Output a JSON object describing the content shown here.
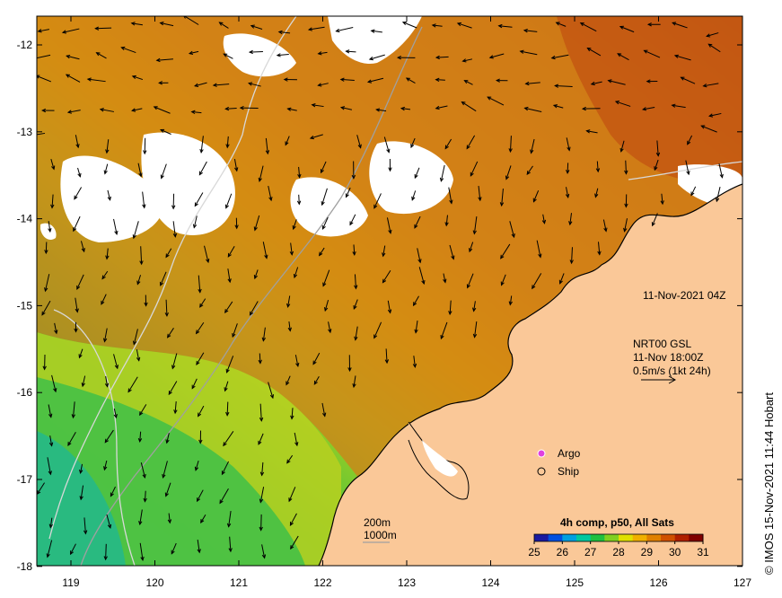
{
  "map": {
    "date_label": "11-Nov-2021 04Z",
    "current_product": "NRT00 GSL",
    "current_time": "11-Nov 18:00Z",
    "current_scale": "0.5m/s (1kt 24h)",
    "legend": {
      "argo": "Argo",
      "ship": "Ship"
    },
    "isobaths": {
      "shallow": "200m",
      "deep": "1000m"
    },
    "colorbar": {
      "title": "4h comp, p50, All Sats",
      "ticks": [
        "25",
        "26",
        "27",
        "28",
        "29",
        "30",
        "31"
      ],
      "colors": [
        "#1a1aa0",
        "#0050e0",
        "#00a0e0",
        "#00c8a0",
        "#20c040",
        "#80d020",
        "#e0e000",
        "#f0b000",
        "#e08000",
        "#d05000",
        "#b02000",
        "#800000"
      ]
    },
    "lon_ticks": [
      "119",
      "120",
      "121",
      "122",
      "123",
      "124",
      "125",
      "126",
      "127"
    ],
    "lat_ticks": [
      "-12",
      "-13",
      "-14",
      "-15",
      "-16",
      "-17",
      "-18"
    ],
    "credit": "© IMOS 15-Nov-2021 11:44 Hobart",
    "colors": {
      "land": "#fac898",
      "cloud": "#ffffff",
      "warm": "#d47a10",
      "hot": "#b03010",
      "cool": "#40c040",
      "mid": "#c0d020"
    }
  }
}
